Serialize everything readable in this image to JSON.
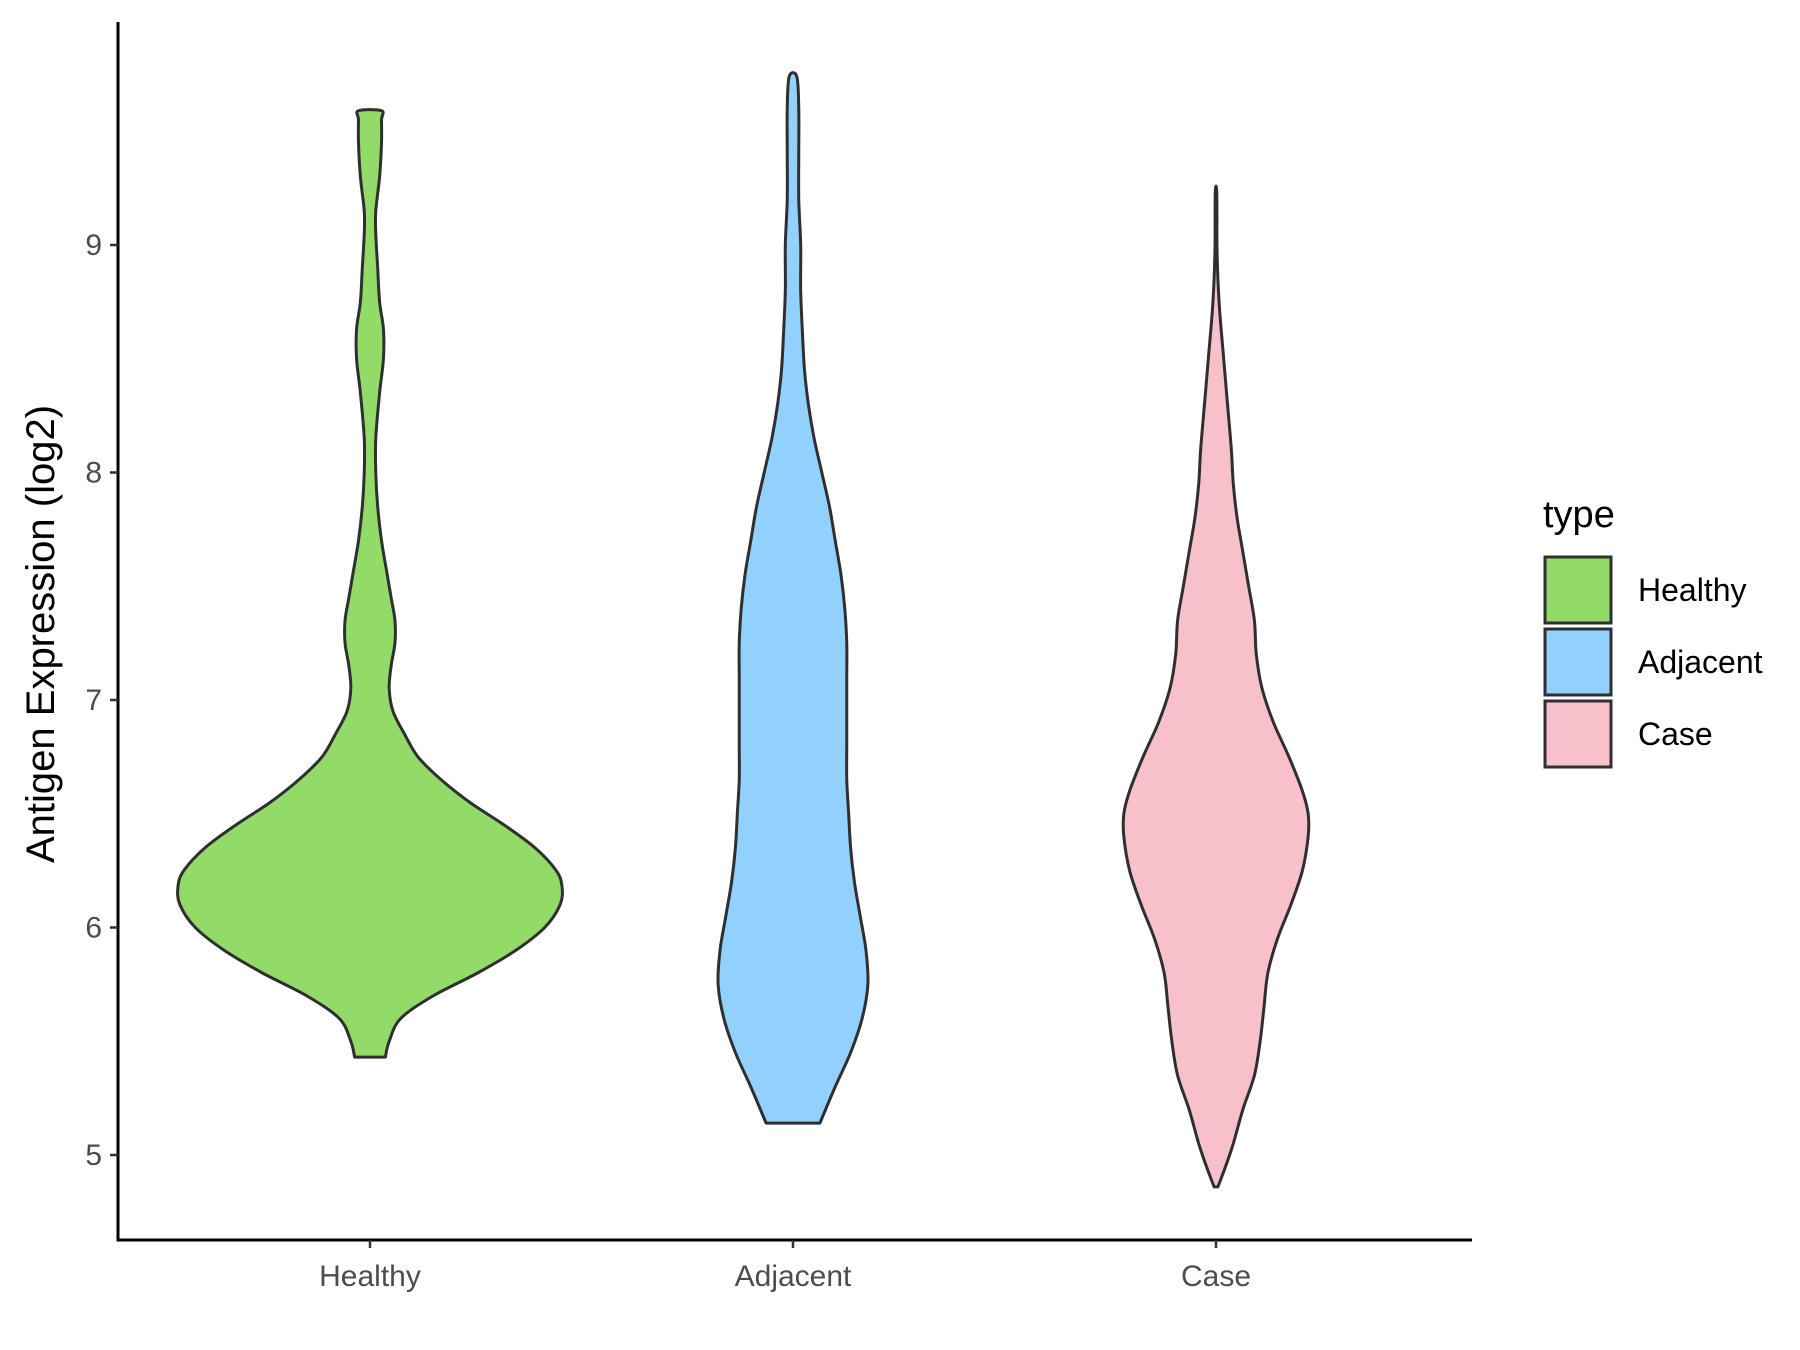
{
  "chart_data": {
    "type": "violin",
    "title": "",
    "xlabel": "",
    "ylabel": "Antigen Expression (log2)",
    "ylim": [
      4.7,
      10.0
    ],
    "yticks": [
      5,
      6,
      7,
      8,
      9
    ],
    "categories": [
      "Healthy",
      "Adjacent",
      "Case"
    ],
    "legend": {
      "title": "type",
      "position": "right",
      "entries": [
        "Healthy",
        "Adjacent",
        "Case"
      ]
    },
    "series": [
      {
        "name": "Healthy",
        "color": "#93DB69",
        "min": 5.43,
        "max": 9.59,
        "density_profile": [
          [
            5.43,
            0.08
          ],
          [
            5.5,
            0.1
          ],
          [
            5.6,
            0.16
          ],
          [
            5.7,
            0.33
          ],
          [
            5.8,
            0.56
          ],
          [
            5.9,
            0.76
          ],
          [
            6.0,
            0.91
          ],
          [
            6.1,
            0.99
          ],
          [
            6.18,
            1.0
          ],
          [
            6.25,
            0.97
          ],
          [
            6.35,
            0.86
          ],
          [
            6.45,
            0.7
          ],
          [
            6.55,
            0.52
          ],
          [
            6.65,
            0.37
          ],
          [
            6.75,
            0.25
          ],
          [
            6.85,
            0.18
          ],
          [
            6.95,
            0.12
          ],
          [
            7.05,
            0.1
          ],
          [
            7.15,
            0.11
          ],
          [
            7.25,
            0.13
          ],
          [
            7.35,
            0.13
          ],
          [
            7.45,
            0.11
          ],
          [
            7.55,
            0.09
          ],
          [
            7.7,
            0.06
          ],
          [
            7.85,
            0.04
          ],
          [
            8.0,
            0.03
          ],
          [
            8.15,
            0.03
          ],
          [
            8.35,
            0.05
          ],
          [
            8.5,
            0.07
          ],
          [
            8.63,
            0.07
          ],
          [
            8.75,
            0.05
          ],
          [
            8.9,
            0.04
          ],
          [
            9.05,
            0.03
          ],
          [
            9.15,
            0.03
          ],
          [
            9.3,
            0.05
          ],
          [
            9.45,
            0.06
          ],
          [
            9.55,
            0.06
          ],
          [
            9.59,
            0.06
          ]
        ]
      },
      {
        "name": "Adjacent",
        "color": "#92D1FE",
        "min": 5.14,
        "max": 9.74,
        "density_profile": [
          [
            5.14,
            0.14
          ],
          [
            5.3,
            0.22
          ],
          [
            5.45,
            0.3
          ],
          [
            5.6,
            0.36
          ],
          [
            5.75,
            0.39
          ],
          [
            5.9,
            0.38
          ],
          [
            6.05,
            0.35
          ],
          [
            6.2,
            0.32
          ],
          [
            6.35,
            0.3
          ],
          [
            6.5,
            0.29
          ],
          [
            6.65,
            0.28
          ],
          [
            6.8,
            0.28
          ],
          [
            6.95,
            0.28
          ],
          [
            7.1,
            0.28
          ],
          [
            7.25,
            0.28
          ],
          [
            7.4,
            0.27
          ],
          [
            7.55,
            0.25
          ],
          [
            7.7,
            0.22
          ],
          [
            7.85,
            0.19
          ],
          [
            8.0,
            0.15
          ],
          [
            8.15,
            0.11
          ],
          [
            8.3,
            0.08
          ],
          [
            8.45,
            0.06
          ],
          [
            8.6,
            0.05
          ],
          [
            8.8,
            0.04
          ],
          [
            9.0,
            0.04
          ],
          [
            9.2,
            0.03
          ],
          [
            9.4,
            0.03
          ],
          [
            9.6,
            0.03
          ],
          [
            9.74,
            0.02
          ]
        ]
      },
      {
        "name": "Case",
        "color": "#F7C0CB",
        "min": 4.86,
        "max": 9.23,
        "density_profile": [
          [
            4.86,
            0.01
          ],
          [
            4.95,
            0.05
          ],
          [
            5.05,
            0.09
          ],
          [
            5.2,
            0.14
          ],
          [
            5.35,
            0.2
          ],
          [
            5.5,
            0.23
          ],
          [
            5.65,
            0.25
          ],
          [
            5.8,
            0.27
          ],
          [
            5.95,
            0.32
          ],
          [
            6.1,
            0.39
          ],
          [
            6.25,
            0.45
          ],
          [
            6.4,
            0.48
          ],
          [
            6.5,
            0.48
          ],
          [
            6.6,
            0.45
          ],
          [
            6.75,
            0.38
          ],
          [
            6.9,
            0.3
          ],
          [
            7.05,
            0.24
          ],
          [
            7.2,
            0.21
          ],
          [
            7.35,
            0.2
          ],
          [
            7.5,
            0.17
          ],
          [
            7.65,
            0.14
          ],
          [
            7.8,
            0.11
          ],
          [
            7.95,
            0.09
          ],
          [
            8.1,
            0.08
          ],
          [
            8.3,
            0.06
          ],
          [
            8.5,
            0.04
          ],
          [
            8.7,
            0.02
          ],
          [
            8.85,
            0.01
          ],
          [
            9.0,
            0.005
          ],
          [
            9.23,
            0.004
          ]
        ]
      }
    ]
  }
}
